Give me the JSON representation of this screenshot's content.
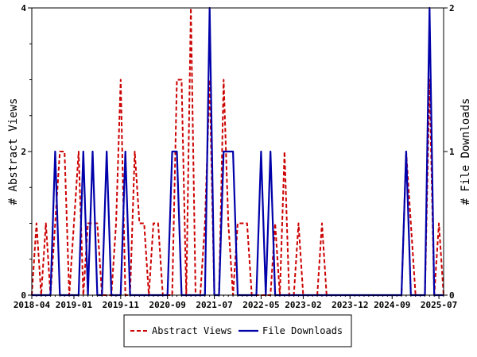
{
  "chart_data": {
    "type": "line",
    "title": "",
    "xlabel": "",
    "ylabel": "# Abstract Views",
    "y2label": "# File Downloads",
    "ylim": [
      0,
      4
    ],
    "y2lim": [
      0,
      2
    ],
    "y_ticks": [
      "0",
      "2",
      "4"
    ],
    "y2_ticks": [
      "0",
      "1",
      "2"
    ],
    "x_ticks": [
      "2018-04",
      "2019-01",
      "2019-11",
      "2020-09",
      "2021-07",
      "2022-05",
      "2023-02",
      "2023-12",
      "2024-09",
      "2025-07"
    ],
    "x": [
      "2018-04",
      "2018-05",
      "2018-06",
      "2018-07",
      "2018-08",
      "2018-09",
      "2018-10",
      "2018-11",
      "2018-12",
      "2019-01",
      "2019-02",
      "2019-03",
      "2019-04",
      "2019-05",
      "2019-06",
      "2019-07",
      "2019-08",
      "2019-09",
      "2019-10",
      "2019-11",
      "2019-12",
      "2020-01",
      "2020-02",
      "2020-03",
      "2020-04",
      "2020-05",
      "2020-06",
      "2020-07",
      "2020-08",
      "2020-09",
      "2020-10",
      "2020-11",
      "2020-12",
      "2021-01",
      "2021-02",
      "2021-03",
      "2021-04",
      "2021-05",
      "2021-06",
      "2021-07",
      "2021-08",
      "2021-09",
      "2021-10",
      "2021-11",
      "2021-12",
      "2022-01",
      "2022-02",
      "2022-03",
      "2022-04",
      "2022-05",
      "2022-06",
      "2022-07",
      "2022-08",
      "2022-09",
      "2022-10",
      "2022-11",
      "2022-12",
      "2023-01",
      "2023-02",
      "2023-03",
      "2023-04",
      "2023-05",
      "2023-06",
      "2023-07",
      "2023-08",
      "2023-09",
      "2023-10",
      "2023-11",
      "2023-12",
      "2024-01",
      "2024-02",
      "2024-03",
      "2024-04",
      "2024-05",
      "2024-06",
      "2024-07",
      "2024-08",
      "2024-09",
      "2024-10",
      "2024-11",
      "2024-12",
      "2025-01",
      "2025-02",
      "2025-03",
      "2025-04",
      "2025-05",
      "2025-06",
      "2025-07",
      "2025-08"
    ],
    "series": [
      {
        "name": "Abstract Views",
        "axis": "left",
        "color": "#cc0000",
        "style": "dashed",
        "values": [
          0,
          1,
          0,
          1,
          0,
          1,
          2,
          2,
          0,
          1,
          2,
          0,
          1,
          1,
          1,
          0,
          0,
          0,
          1,
          3,
          0,
          0,
          2,
          1,
          1,
          0,
          1,
          1,
          0,
          0,
          0,
          3,
          3,
          0,
          4,
          0,
          0,
          1,
          3,
          0,
          0,
          3,
          1,
          0,
          1,
          1,
          1,
          0,
          0,
          0,
          0,
          0,
          1,
          0,
          2,
          0,
          0,
          1,
          0,
          0,
          0,
          0,
          1,
          0,
          0,
          0,
          0,
          0,
          0,
          0,
          0,
          0,
          0,
          0,
          0,
          0,
          0,
          0,
          0,
          0,
          2,
          1,
          0,
          0,
          0,
          3,
          0,
          1,
          0
        ]
      },
      {
        "name": "File Downloads",
        "axis": "right",
        "color": "#0000aa",
        "style": "solid",
        "values": [
          0,
          0,
          0,
          0,
          0,
          1,
          0,
          0,
          0,
          0,
          0,
          1,
          0,
          1,
          0,
          0,
          1,
          0,
          0,
          0,
          1,
          0,
          0,
          0,
          0,
          0,
          0,
          0,
          0,
          0,
          1,
          1,
          0,
          0,
          0,
          0,
          0,
          0,
          2,
          0,
          0,
          1,
          1,
          1,
          0,
          0,
          0,
          0,
          0,
          1,
          0,
          1,
          0,
          0,
          0,
          0,
          0,
          0,
          0,
          0,
          0,
          0,
          0,
          0,
          0,
          0,
          0,
          0,
          0,
          0,
          0,
          0,
          0,
          0,
          0,
          0,
          0,
          0,
          0,
          0,
          1,
          0,
          0,
          0,
          0,
          2,
          0,
          0,
          0
        ]
      }
    ],
    "legend_position": "bottom-center"
  }
}
